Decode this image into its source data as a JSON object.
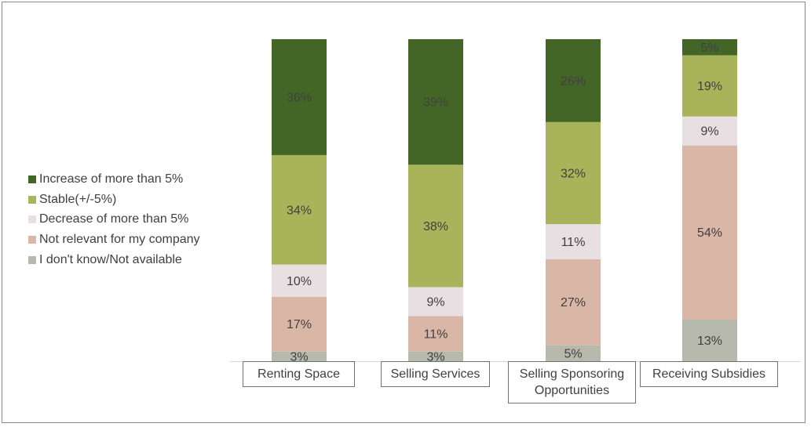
{
  "chart_data": {
    "type": "bar",
    "stacked": true,
    "orientation": "vertical",
    "categories": [
      "Renting Space",
      "Selling Services",
      "Selling Sponsoring Opportunities",
      "Receiving Subsidies"
    ],
    "series": [
      {
        "name": "I don't know/Not available",
        "color": "#b6b9ac",
        "values": [
          3,
          3,
          5,
          13
        ]
      },
      {
        "name": "Not relevant for my company",
        "color": "#d9b6a6",
        "values": [
          17,
          11,
          27,
          54
        ]
      },
      {
        "name": "Decrease of more than 5%",
        "color": "#e7dfe1",
        "values": [
          10,
          9,
          11,
          9
        ]
      },
      {
        "name": "Stable(+/-5%)",
        "color": "#a9b359",
        "values": [
          34,
          38,
          32,
          19
        ]
      },
      {
        "name": "Increase of more than 5%",
        "color": "#436627",
        "values": [
          36,
          39,
          26,
          5
        ]
      }
    ],
    "legend_order": [
      "Increase of more than 5%",
      "Stable(+/-5%)",
      "Decrease of more than 5%",
      "Not relevant for my company",
      "I don't know/Not available"
    ],
    "value_format": "percent",
    "ylim": [
      0,
      100
    ],
    "legend_position": "left",
    "grid": false
  }
}
